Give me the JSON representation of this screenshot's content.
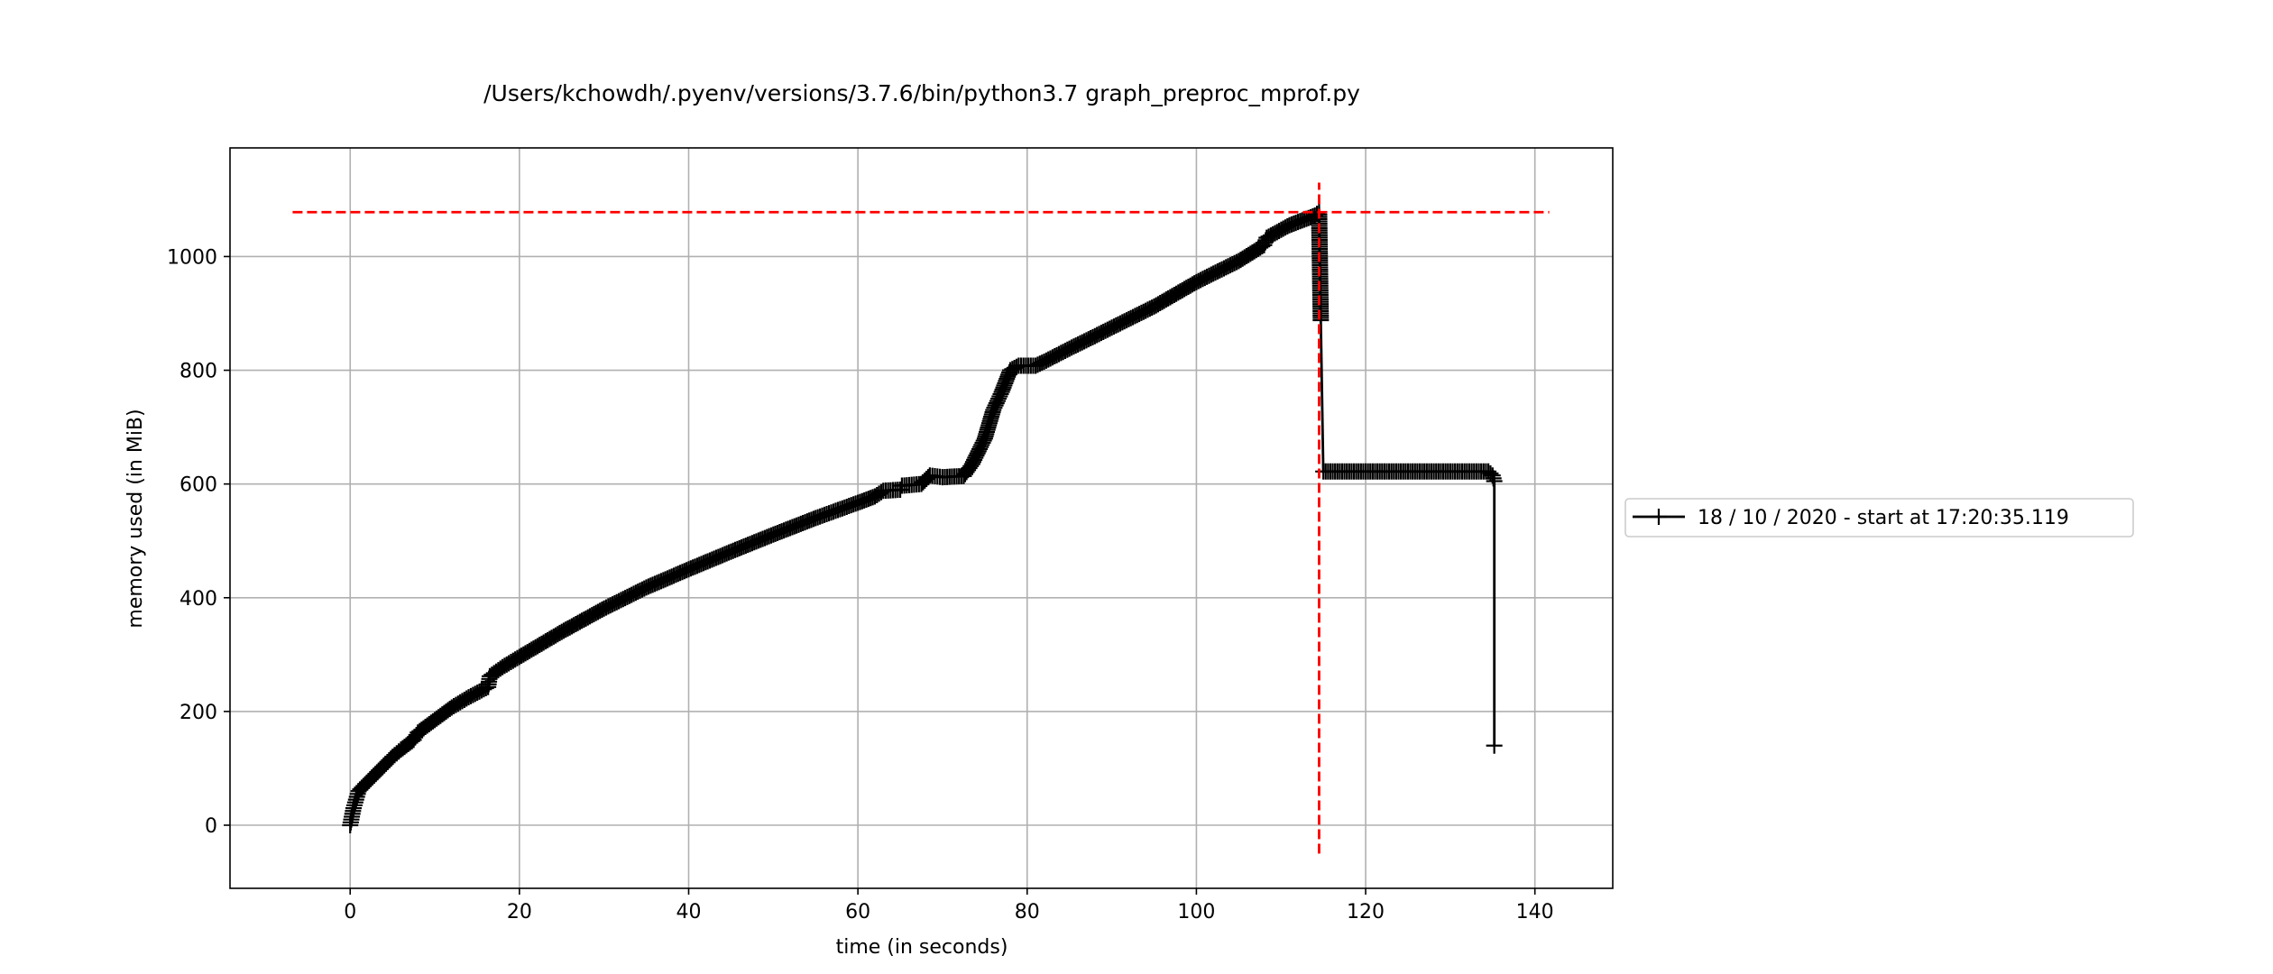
{
  "chart_data": {
    "type": "line",
    "title": "/Users/kchowdh/.pyenv/versions/3.7.6/bin/python3.7 graph_preproc_mprof.py",
    "xlabel": "time (in seconds)",
    "ylabel": "memory used (in MiB)",
    "xlim": [
      -14.2,
      149.2
    ],
    "ylim": [
      -111,
      1191
    ],
    "xticks": [
      0,
      20,
      40,
      60,
      80,
      100,
      120,
      140
    ],
    "yticks": [
      0,
      200,
      400,
      600,
      800,
      1000
    ],
    "xtick_labels": [
      "0",
      "20",
      "40",
      "60",
      "80",
      "100",
      "120",
      "140"
    ],
    "ytick_labels": [
      "0",
      "200",
      "400",
      "600",
      "800",
      "1000"
    ],
    "grid": true,
    "legend_position": "center-right, outside plot",
    "series": [
      {
        "name": "18 / 10 / 2020 - start at 17:20:35.119",
        "color": "#000000",
        "marker": "plus",
        "points": [
          [
            0,
            0
          ],
          [
            0.2,
            15
          ],
          [
            0.4,
            30
          ],
          [
            0.7,
            45
          ],
          [
            1.0,
            60
          ],
          [
            2.0,
            75
          ],
          [
            3.0,
            90
          ],
          [
            4.0,
            105
          ],
          [
            5.0,
            120
          ],
          [
            6.0,
            133
          ],
          [
            7.5,
            150
          ],
          [
            8.0,
            163
          ],
          [
            10.0,
            185
          ],
          [
            12.0,
            207
          ],
          [
            14.0,
            225
          ],
          [
            16.3,
            243
          ],
          [
            16.5,
            262
          ],
          [
            18.0,
            278
          ],
          [
            20.0,
            296
          ],
          [
            25.0,
            340
          ],
          [
            30.0,
            381
          ],
          [
            35.0,
            418
          ],
          [
            40.0,
            450
          ],
          [
            45.0,
            481
          ],
          [
            50.0,
            511
          ],
          [
            55.0,
            540
          ],
          [
            60.0,
            567
          ],
          [
            62.0,
            578
          ],
          [
            63.0,
            588
          ],
          [
            65.0,
            590
          ],
          [
            65.2,
            597
          ],
          [
            67.5,
            600
          ],
          [
            68.5,
            615
          ],
          [
            70.0,
            612
          ],
          [
            72.5,
            614
          ],
          [
            73.5,
            635
          ],
          [
            75.0,
            680
          ],
          [
            76.0,
            730
          ],
          [
            77.0,
            762
          ],
          [
            78.0,
            800
          ],
          [
            79.0,
            808
          ],
          [
            81.0,
            808
          ],
          [
            82.0,
            815
          ],
          [
            85.0,
            838
          ],
          [
            88.0,
            860
          ],
          [
            90.0,
            875
          ],
          [
            95.0,
            912
          ],
          [
            100.0,
            955
          ],
          [
            102.0,
            970
          ],
          [
            105.0,
            992
          ],
          [
            108.0,
            1020
          ],
          [
            108.3,
            1033
          ],
          [
            111.0,
            1055
          ],
          [
            114.0,
            1072
          ],
          [
            114.5,
            1078
          ],
          [
            114.7,
            888
          ],
          [
            115.0,
            622
          ],
          [
            120.0,
            622
          ],
          [
            125.0,
            622
          ],
          [
            130.0,
            622
          ],
          [
            134.5,
            622
          ],
          [
            135.0,
            615
          ],
          [
            135.2,
            605
          ],
          [
            135.2,
            140
          ]
        ]
      }
    ],
    "reference_lines": [
      {
        "orientation": "horizontal",
        "value": 1078,
        "from": -6.8,
        "to": 141.7,
        "color": "#ff0000",
        "style": "dashed"
      },
      {
        "orientation": "vertical",
        "value": 114.5,
        "from": -50,
        "to": 1130,
        "color": "#ff0000",
        "style": "dashed"
      }
    ]
  }
}
